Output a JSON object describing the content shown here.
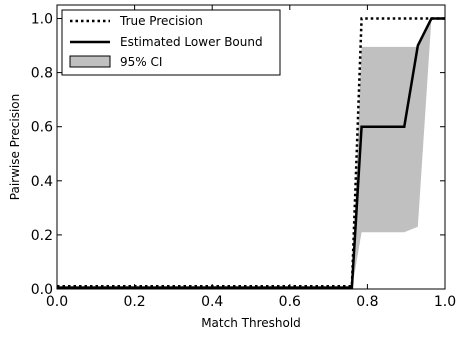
{
  "chart_data": {
    "type": "line",
    "title": "",
    "xlabel": "Match Threshold",
    "ylabel": "Pairwise Precision",
    "xlim": [
      0.0,
      1.0
    ],
    "ylim": [
      0.0,
      1.05
    ],
    "grid": false,
    "legend_position": "top-left",
    "x_ticks": [
      "0.0",
      "0.2",
      "0.4",
      "0.6",
      "0.8",
      "1.0"
    ],
    "y_ticks": [
      "0.0",
      "0.2",
      "0.4",
      "0.6",
      "0.8",
      "1.0"
    ],
    "x_tick_values": [
      0.0,
      0.2,
      0.4,
      0.6,
      0.8,
      1.0
    ],
    "y_tick_values": [
      0.0,
      0.2,
      0.4,
      0.6,
      0.8,
      1.0
    ],
    "series": [
      {
        "name": "True Precision",
        "style": "dotted",
        "color": "#000000",
        "x": [
          0.0,
          0.76,
          0.785,
          0.98,
          1.0
        ],
        "y": [
          0.01,
          0.01,
          1.0,
          1.0,
          1.0
        ]
      },
      {
        "name": "Estimated Lower Bound",
        "style": "solid",
        "color": "#000000",
        "x": [
          0.0,
          0.76,
          0.785,
          0.895,
          0.93,
          0.965,
          1.0
        ],
        "y": [
          0.005,
          0.005,
          0.6,
          0.6,
          0.9,
          1.0,
          1.0
        ]
      }
    ],
    "band": {
      "name": "95% CI",
      "color": "#c0c0c0",
      "x": [
        0.0,
        0.76,
        0.785,
        0.895,
        0.93,
        0.965,
        1.0
      ],
      "upper": [
        0.01,
        0.01,
        0.895,
        0.895,
        0.895,
        1.0,
        1.0
      ],
      "lower": [
        0.0,
        0.0,
        0.21,
        0.21,
        0.23,
        1.0,
        1.0
      ]
    }
  }
}
